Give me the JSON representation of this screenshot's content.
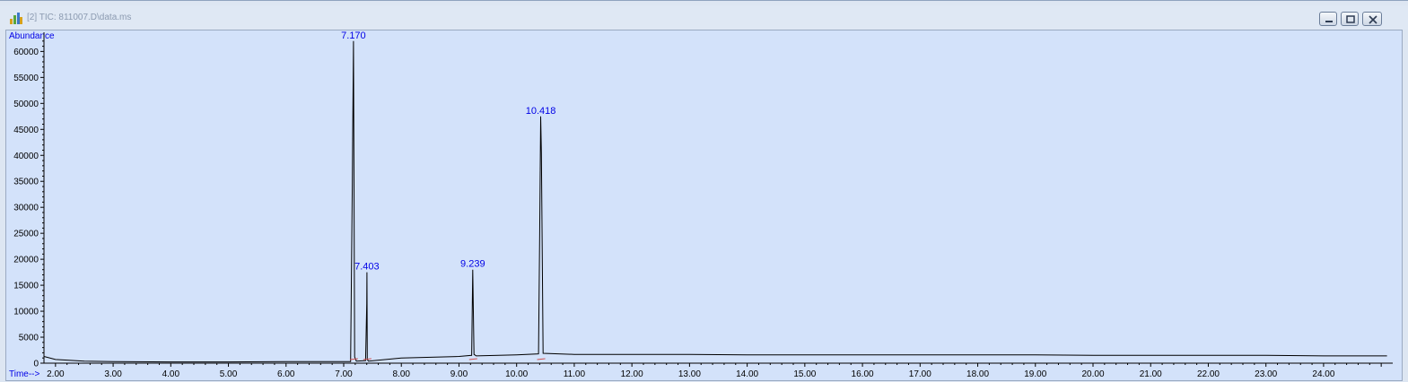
{
  "window": {
    "title": "[2] TIC: 811007.D\\data.ms",
    "icon": "chromatogram-app-icon",
    "buttons": [
      "minimize-icon",
      "restore-icon",
      "close-icon"
    ]
  },
  "colors": {
    "plot_background": "#d3e2fa",
    "trace": "#000000",
    "labels": "#0000e6",
    "baseline_marks": "#d05050"
  },
  "chart_data": {
    "type": "line",
    "title": "",
    "xlabel": "Time-->",
    "ylabel": "Abundance",
    "xlim": [
      1.8,
      25.2
    ],
    "ylim": [
      0,
      63000
    ],
    "xticks": [
      "2.00",
      "3.00",
      "4.00",
      "5.00",
      "6.00",
      "7.00",
      "8.00",
      "9.00",
      "10.00",
      "11.00",
      "12.00",
      "13.00",
      "14.00",
      "15.00",
      "16.00",
      "17.00",
      "18.00",
      "19.00",
      "20.00",
      "21.00",
      "22.00",
      "23.00",
      "24.00"
    ],
    "xtick_values": [
      2,
      3,
      4,
      5,
      6,
      7,
      8,
      9,
      10,
      11,
      12,
      13,
      14,
      15,
      16,
      17,
      18,
      19,
      20,
      21,
      22,
      23,
      24
    ],
    "yticks": [
      "0",
      "5000",
      "10000",
      "15000",
      "20000",
      "25000",
      "30000",
      "35000",
      "40000",
      "45000",
      "50000",
      "55000",
      "60000"
    ],
    "ytick_values": [
      0,
      5000,
      10000,
      15000,
      20000,
      25000,
      30000,
      35000,
      40000,
      45000,
      50000,
      55000,
      60000
    ],
    "grid": false,
    "series": [
      {
        "x": [
          1.8,
          2.0,
          2.5,
          3.0,
          4.0,
          5.0,
          6.0,
          7.0,
          7.12,
          7.15,
          7.17,
          7.19,
          7.22,
          7.38,
          7.4,
          7.403,
          7.41,
          7.43,
          8.0,
          9.0,
          9.22,
          9.239,
          9.26,
          9.3,
          10.0,
          10.38,
          10.4,
          10.418,
          10.43,
          10.46,
          11.0,
          12.0,
          13.0,
          14.0,
          15.0,
          16.0,
          17.0,
          18.0,
          19.0,
          20.0,
          21.0,
          22.0,
          23.0,
          24.0,
          25.1
        ],
        "y": [
          1300,
          700,
          400,
          300,
          250,
          250,
          300,
          300,
          300,
          34500,
          62000,
          1200,
          400,
          500,
          11500,
          17500,
          700,
          400,
          1000,
          1300,
          1500,
          18000,
          1700,
          1400,
          1600,
          1800,
          25000,
          47500,
          40500,
          1900,
          1700,
          1700,
          1700,
          1600,
          1600,
          1600,
          1600,
          1600,
          1600,
          1500,
          1500,
          1500,
          1500,
          1400,
          1400
        ]
      }
    ],
    "peak_labels": [
      {
        "label": "7.170",
        "x": 7.17,
        "y": 62000
      },
      {
        "label": "7.403",
        "x": 7.403,
        "y": 17500
      },
      {
        "label": "9.239",
        "x": 9.239,
        "y": 18000
      },
      {
        "label": "10.418",
        "x": 10.418,
        "y": 47500
      }
    ]
  }
}
